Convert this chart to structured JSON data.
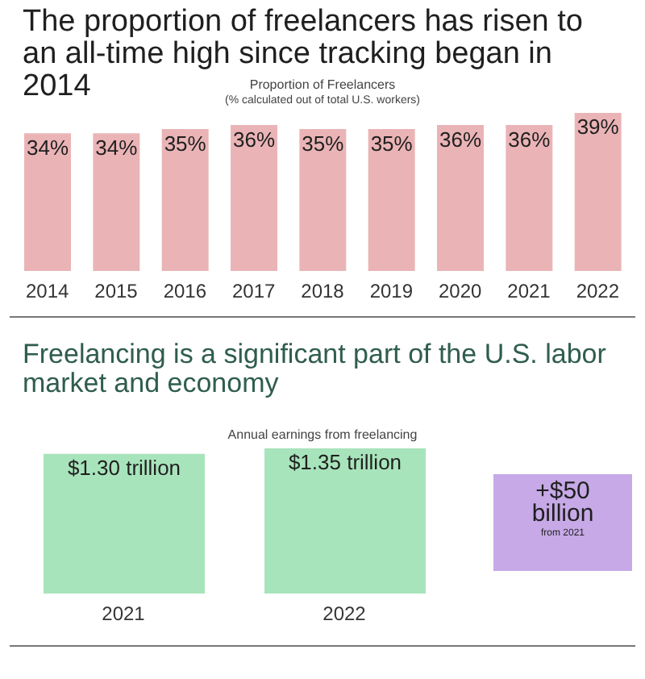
{
  "chart_data": [
    {
      "type": "bar",
      "title": "The proportion of freelancers has risen to an all-time high since tracking began in 2014",
      "subtitle": "Proportion of Freelancers",
      "annotations": [
        "(% calculated out of total U.S. workers)"
      ],
      "categories": [
        "2014",
        "2015",
        "2016",
        "2017",
        "2018",
        "2019",
        "2020",
        "2021",
        "2022"
      ],
      "values": [
        34,
        34,
        35,
        36,
        35,
        35,
        36,
        36,
        39
      ],
      "value_labels": [
        "34%",
        "34%",
        "35%",
        "36%",
        "35%",
        "35%",
        "36%",
        "36%",
        "39%"
      ],
      "color": "#eab4b6",
      "grid": false,
      "legend": false
    },
    {
      "type": "bar",
      "title": "Freelancing is a significant part of the U.S. labor market and economy",
      "subtitle": "Annual earnings from freelancing",
      "annotations": [
        "+$50 billion",
        "from 2021"
      ],
      "categories": [
        "2021",
        "2022"
      ],
      "values": [
        1.3,
        1.35
      ],
      "value_labels": [
        "$1.30 trillion",
        "$1.35 trillion"
      ],
      "color": "#a8e4bb",
      "grid": false,
      "legend": false
    }
  ]
}
